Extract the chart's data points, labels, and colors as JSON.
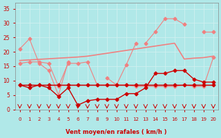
{
  "x": [
    0,
    1,
    2,
    3,
    4,
    5,
    6,
    7,
    8,
    9,
    10,
    11,
    12,
    13,
    14,
    15,
    16,
    17,
    18,
    19,
    20
  ],
  "series": [
    {
      "name": "rafales_peak",
      "color": "#f08080",
      "marker": "D",
      "markersize": 2.5,
      "linewidth": 0.8,
      "y": [
        21,
        24.5,
        16,
        13.5,
        5,
        16.5,
        null,
        null,
        null,
        null,
        null,
        null,
        null,
        23,
        27,
        31.5,
        31.5,
        29.5,
        null,
        27,
        27
      ]
    },
    {
      "name": "rafales_connected",
      "color": "#f08080",
      "marker": "D",
      "markersize": 2.5,
      "linewidth": 0.8,
      "y": [
        null,
        null,
        null,
        null,
        null,
        null,
        null,
        null,
        null,
        11,
        8.5,
        15.5,
        23,
        null,
        null,
        null,
        null,
        null,
        null,
        null,
        null
      ]
    },
    {
      "name": "trend_upper",
      "color": "#f08080",
      "marker": null,
      "markersize": 0,
      "linewidth": 1.2,
      "y": [
        17,
        17.2,
        17.4,
        17.6,
        17.8,
        18,
        18.2,
        18.5,
        19,
        19.5,
        20,
        20.5,
        21,
        21.5,
        22,
        22.5,
        23,
        17.5,
        17.8,
        18,
        18.5
      ]
    },
    {
      "name": "mid_flat",
      "color": "#f08080",
      "marker": "D",
      "markersize": 2.5,
      "linewidth": 0.8,
      "y": [
        16,
        16.5,
        16.5,
        16,
        8,
        16,
        16,
        16.5,
        8.5,
        8.5,
        8.5,
        8.5,
        8,
        8,
        8,
        8,
        8,
        8.5,
        8,
        8,
        18
      ]
    },
    {
      "name": "wind_speed_dark",
      "color": "#cc0000",
      "marker": "D",
      "markersize": 2.5,
      "linewidth": 1.0,
      "y": [
        8.5,
        7.5,
        8.5,
        7.5,
        4.5,
        7.5,
        1.5,
        3,
        3.5,
        3.5,
        3.5,
        5.5,
        5.5,
        7.5,
        12.5,
        12.5,
        13.5,
        13.5,
        10.5,
        9.5,
        9.5
      ]
    },
    {
      "name": "base_dark1",
      "color": "#cc0000",
      "marker": "D",
      "markersize": 2.5,
      "linewidth": 1.0,
      "y": [
        8.5,
        8.5,
        8.5,
        8.5,
        8.5,
        8.5,
        8.5,
        8.5,
        8.5,
        8.5,
        8.5,
        8.5,
        8.5,
        8.5,
        8.5,
        8.5,
        8.5,
        8.5,
        8.5,
        8.5,
        8.5
      ]
    },
    {
      "name": "base_dark2",
      "color": "#cc0000",
      "marker": null,
      "markersize": 0,
      "linewidth": 0.8,
      "y": [
        8.5,
        8.5,
        8.5,
        8.5,
        8.5,
        8.5,
        8.5,
        8.5,
        8.5,
        8.5,
        8.5,
        8.5,
        8.5,
        8.5,
        8.5,
        8.5,
        8.5,
        8.5,
        8.5,
        8.5,
        8.5
      ]
    },
    {
      "name": "base_dark3",
      "color": "#cc0000",
      "marker": null,
      "markersize": 0,
      "linewidth": 0.8,
      "y": [
        8.5,
        8.5,
        8.5,
        8.5,
        8.5,
        8.5,
        8.5,
        8.5,
        8.5,
        8.5,
        8.5,
        8.5,
        8.5,
        8.5,
        8.5,
        8.5,
        8.5,
        8.5,
        8.5,
        8.5,
        8.5
      ]
    }
  ],
  "wind_arrows_x": [
    0,
    1,
    2,
    3,
    4,
    5,
    6,
    7,
    8,
    9,
    10,
    11,
    12,
    13,
    14,
    15,
    16,
    17,
    18,
    19,
    20
  ],
  "arrow_color": "#cc0000",
  "xlim": [
    -0.5,
    20.5
  ],
  "ylim": [
    -1,
    37
  ],
  "plot_ylim": [
    0,
    37
  ],
  "yticks": [
    0,
    5,
    10,
    15,
    20,
    25,
    30,
    35
  ],
  "xticks": [
    0,
    1,
    2,
    3,
    4,
    5,
    6,
    7,
    8,
    9,
    10,
    11,
    12,
    13,
    14,
    15,
    16,
    17,
    18,
    19,
    20
  ],
  "xlabel": "Vent moyen/en rafales ( km/h )",
  "bg_color": "#b0e8e8",
  "grid_color": "#d0f0f0",
  "tick_color": "#cc0000",
  "label_color": "#cc0000"
}
